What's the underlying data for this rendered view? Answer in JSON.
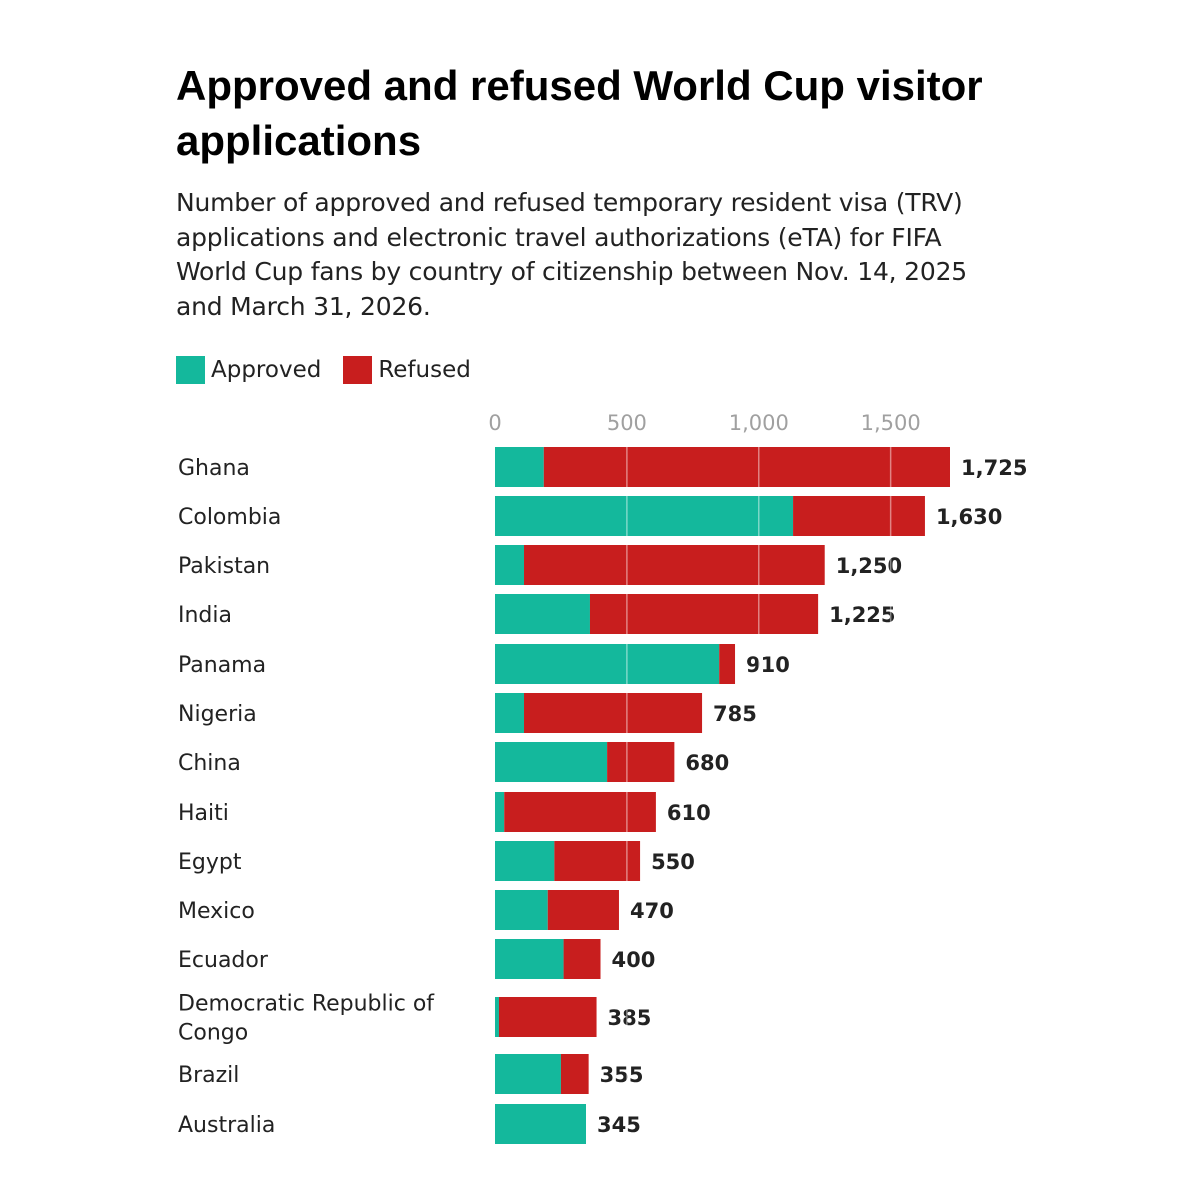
{
  "chart_data": {
    "type": "bar",
    "orientation": "horizontal",
    "stacked": true,
    "title": "Approved and refused World Cup visitor applications",
    "subtitle": "Number of approved and refused temporary resident visa (TRV) applications and electronic travel authorizations (eTA) for FIFA World Cup fans by country of citizenship between Nov. 14, 2025 and March 31, 2026.",
    "categories": [
      "Ghana",
      "Colombia",
      "Pakistan",
      "India",
      "Panama",
      "Nigeria",
      "China",
      "Haiti",
      "Egypt",
      "Mexico",
      "Ecuador",
      "Democratic Republic of Congo",
      "Brazil",
      "Australia"
    ],
    "category_lines": [
      [
        "Ghana"
      ],
      [
        "Colombia"
      ],
      [
        "Pakistan"
      ],
      [
        "India"
      ],
      [
        "Panama"
      ],
      [
        "Nigeria"
      ],
      [
        "China"
      ],
      [
        "Haiti"
      ],
      [
        "Egypt"
      ],
      [
        "Mexico"
      ],
      [
        "Ecuador"
      ],
      [
        "Democratic Republic of",
        "Congo"
      ],
      [
        "Brazil"
      ],
      [
        "Australia"
      ]
    ],
    "series": [
      {
        "name": "Approved",
        "color": "#14b89c",
        "values": [
          185,
          1130,
          110,
          360,
          850,
          110,
          425,
          35,
          225,
          200,
          260,
          15,
          250,
          345
        ]
      },
      {
        "name": "Refused",
        "color": "#c81e1e",
        "values": [
          1540,
          500,
          1140,
          865,
          60,
          675,
          255,
          575,
          325,
          270,
          140,
          370,
          105,
          0
        ]
      }
    ],
    "totals": [
      1725,
      1630,
      1250,
      1225,
      910,
      785,
      680,
      610,
      550,
      470,
      400,
      385,
      355,
      345
    ],
    "total_labels": [
      "1,725",
      "1,630",
      "1,250",
      "1,225",
      "910",
      "785",
      "680",
      "610",
      "550",
      "470",
      "400",
      "385",
      "355",
      "345"
    ],
    "x_ticks": [
      0,
      500,
      1000,
      1500
    ],
    "x_tick_labels": [
      "0",
      "500",
      "1,000",
      "1,500"
    ],
    "xlim": [
      0,
      1725
    ],
    "axis_position": "top",
    "grid": true,
    "legend_position": "top-left"
  }
}
